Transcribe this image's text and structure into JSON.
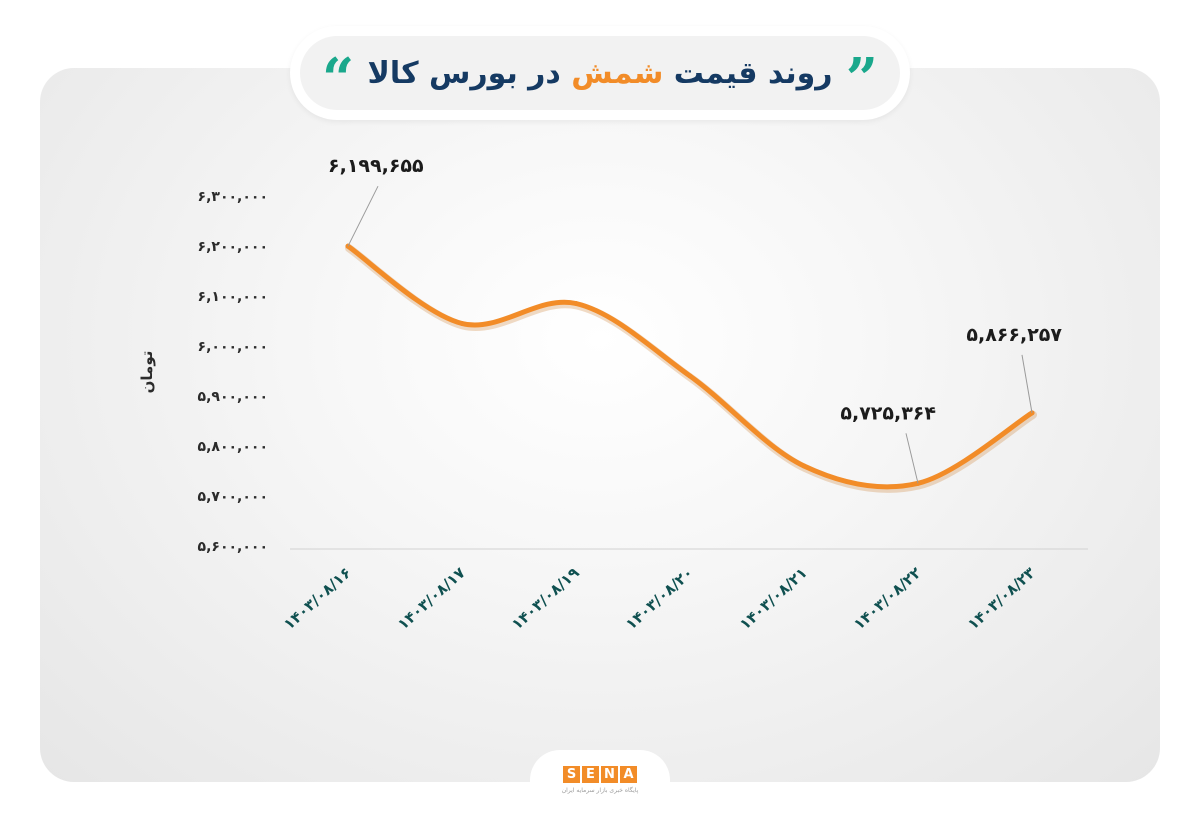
{
  "header": {
    "title_part1": "روند قیمت",
    "title_highlight": "شمش",
    "title_part2": "در بورس کالا",
    "quote_open": "“",
    "quote_close": "”"
  },
  "logo": {
    "letters": [
      "S",
      "E",
      "N",
      "A"
    ],
    "caption": "پایگاه خبری بازار سرمایه ایران"
  },
  "colors": {
    "line": "#f28c28",
    "title_dark": "#153a63",
    "title_highlight": "#f28c28",
    "quote": "#1aa88c",
    "x_tick": "#0f5050"
  },
  "chart_data": {
    "type": "line",
    "ylabel": "تومان",
    "xlabel": "",
    "ylim": [
      5600000,
      6300000
    ],
    "y_ticks": [
      5600000,
      5700000,
      5800000,
      5900000,
      6000000,
      6100000,
      6200000,
      6300000
    ],
    "y_tick_labels": [
      "۵,۶۰۰,۰۰۰",
      "۵,۷۰۰,۰۰۰",
      "۵,۸۰۰,۰۰۰",
      "۵,۹۰۰,۰۰۰",
      "۶,۰۰۰,۰۰۰",
      "۶,۱۰۰,۰۰۰",
      "۶,۲۰۰,۰۰۰",
      "۶,۳۰۰,۰۰۰"
    ],
    "categories": [
      "۱۴۰۳/۰۸/۱۶",
      "۱۴۰۳/۰۸/۱۷",
      "۱۴۰۳/۰۸/۱۹",
      "۱۴۰۳/۰۸/۲۰",
      "۱۴۰۳/۰۸/۲۱",
      "۱۴۰۳/۰۸/۲۲",
      "۱۴۰۳/۰۸/۲۳"
    ],
    "series": [
      {
        "values": [
          6199655,
          6045000,
          6085000,
          5940000,
          5760000,
          5725364,
          5866257
        ]
      }
    ],
    "data_labels": [
      {
        "index": 0,
        "text": "۶,۱۹۹,۶۵۵"
      },
      {
        "index": 5,
        "text": "۵,۷۲۵,۳۶۴"
      },
      {
        "index": 6,
        "text": "۵,۸۶۶,۲۵۷"
      }
    ],
    "grid": false,
    "smooth": true
  }
}
